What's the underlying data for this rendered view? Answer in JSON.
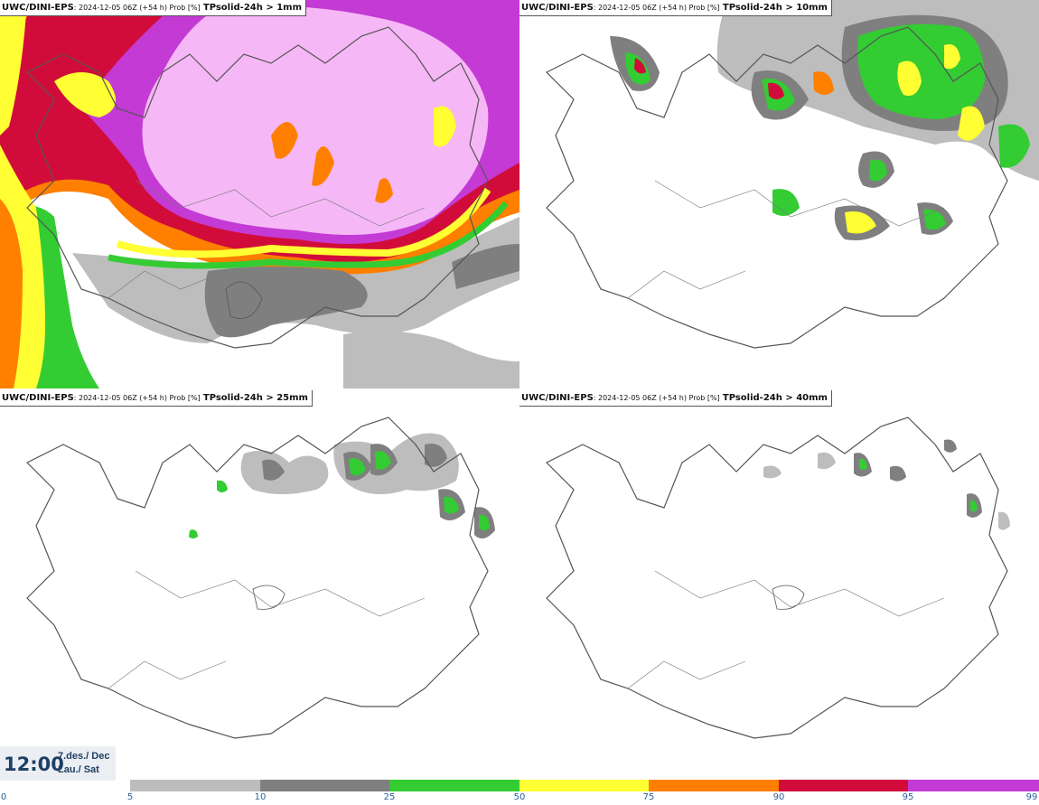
{
  "panels": [
    {
      "model": "UWC/DINI-EPS",
      "meta": ": 2024-12-05 06Z (+54 h) Prob [%]",
      "field": "TPsolid-24h > 1mm"
    },
    {
      "model": "UWC/DINI-EPS",
      "meta": ": 2024-12-05 06Z (+54 h) Prob [%]",
      "field": "TPsolid-24h > 10mm"
    },
    {
      "model": "UWC/DINI-EPS",
      "meta": ": 2024-12-05 06Z (+54 h) Prob [%]",
      "field": "TPsolid-24h > 25mm"
    },
    {
      "model": "UWC/DINI-EPS",
      "meta": ": 2024-12-05 06Z (+54 h) Prob [%]",
      "field": "TPsolid-24h > 40mm"
    }
  ],
  "valid_time": {
    "clock": "12:00",
    "date_line1": "7.des./ Dec",
    "date_line2": "Lau./ Sat"
  },
  "legend": {
    "ticks": [
      "0",
      "5",
      "10",
      "25",
      "50",
      "75",
      "90",
      "95",
      "99"
    ],
    "colors": [
      "#bdbdbd",
      "#7f7f7f",
      "#33cc33",
      "#ffff33",
      "#ff7f00",
      "#d10c3a",
      "#c43ad4",
      "#f6b7f6"
    ],
    "unit": "Prob [%]"
  },
  "palette": {
    "coast": "#555555",
    "land": "#ffffff"
  }
}
